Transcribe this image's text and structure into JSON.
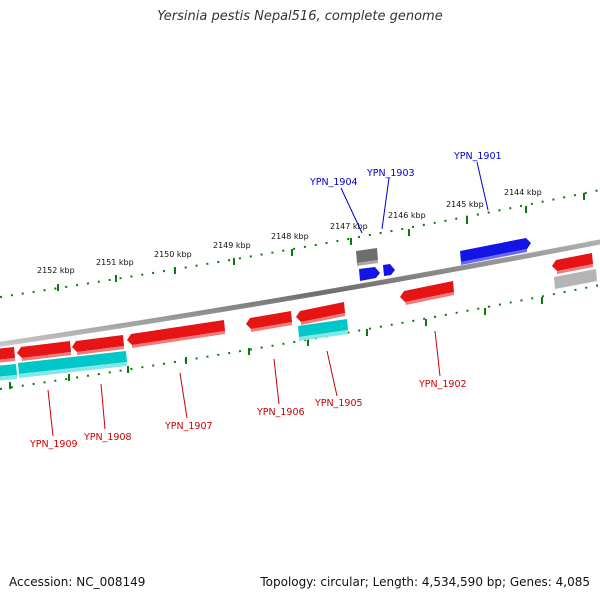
{
  "title": "Yersinia pestis Nepal516, complete genome",
  "footer": {
    "accession": "Accession: NC_008149",
    "summary": "Topology: circular; Length: 4,534,590 bp; Genes: 4,085"
  },
  "scale_labels": [
    "2144 kbp",
    "2145 kbp",
    "2146 kbp",
    "2147 kbp",
    "2148 kbp",
    "2149 kbp",
    "2150 kbp",
    "2151 kbp",
    "2152 kbp"
  ],
  "gene_labels": {
    "forward": [
      "YPN_1901",
      "YPN_1903",
      "YPN_1904"
    ],
    "reverse": [
      "YPN_1902",
      "YPN_1905",
      "YPN_1906",
      "YPN_1907",
      "YPN_1908",
      "YPN_1909"
    ]
  },
  "colors": {
    "forward_cds": "#0000ee",
    "reverse_cds": "#ee0000",
    "rna": "#00cccc",
    "other": "#777777",
    "backbone": "#888888",
    "ticks": "#0a7a0a",
    "forward_label": "#0000cc",
    "reverse_label": "#cc0000"
  }
}
